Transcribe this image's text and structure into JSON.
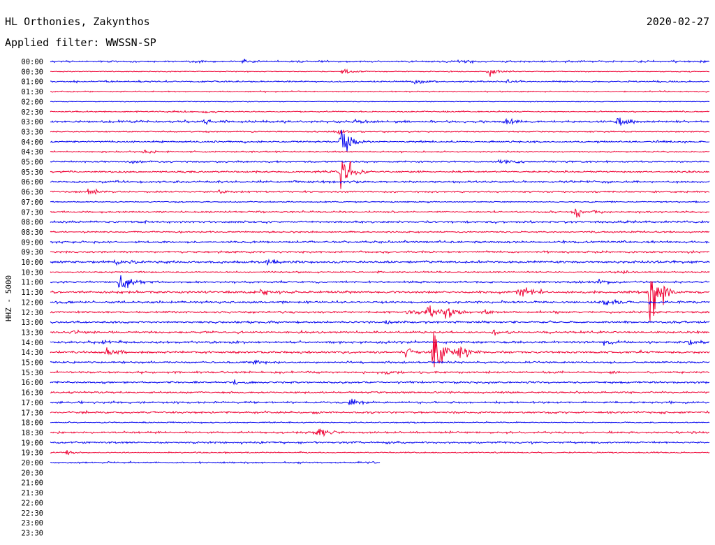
{
  "header": {
    "station": "HL Orthonies, Zakynthos",
    "filter": "Applied filter: WWSSN-SP",
    "date": "2020-02-27"
  },
  "chart_data": {
    "type": "line",
    "ylabel": "HHZ - 5000",
    "row_labels": [
      "00:00",
      "00:30",
      "01:00",
      "01:30",
      "02:00",
      "02:30",
      "03:00",
      "03:30",
      "04:00",
      "04:30",
      "05:00",
      "05:30",
      "06:00",
      "06:30",
      "07:00",
      "07:30",
      "08:00",
      "08:30",
      "09:00",
      "09:30",
      "10:00",
      "10:30",
      "11:00",
      "11:30",
      "12:00",
      "12:30",
      "13:00",
      "13:30",
      "14:00",
      "14:30",
      "15:00",
      "15:30",
      "16:00",
      "16:30",
      "17:00",
      "17:30",
      "18:00",
      "18:30",
      "19:00",
      "19:30",
      "20:00",
      "20:30",
      "21:00",
      "21:30",
      "22:00",
      "22:30",
      "23:00",
      "23:30"
    ],
    "row_minutes": 30,
    "series_colors": [
      "#0000ee",
      "#ee0033"
    ],
    "rows_with_data": 41,
    "last_row_coverage": 0.5,
    "noise_levels": [
      1.2,
      0.6,
      1.0,
      0.8,
      0.5,
      0.8,
      1.5,
      0.8,
      1.2,
      1.0,
      1.0,
      1.2,
      1.4,
      1.0,
      0.8,
      1.2,
      1.3,
      1.0,
      1.4,
      1.2,
      1.5,
      1.0,
      1.2,
      1.5,
      1.5,
      1.3,
      1.3,
      1.3,
      1.5,
      1.5,
      1.2,
      1.3,
      1.3,
      1.2,
      1.3,
      1.3,
      0.8,
      1.3,
      1.3,
      0.8,
      1.0
    ],
    "events": [
      {
        "row": 0,
        "t": 0.29,
        "amp": 3
      },
      {
        "row": 0,
        "t": 0.62,
        "amp": 3
      },
      {
        "row": 1,
        "t": 0.443,
        "amp": 4
      },
      {
        "row": 1,
        "t": 0.664,
        "amp": 8
      },
      {
        "row": 2,
        "t": 0.55,
        "amp": 3
      },
      {
        "row": 2,
        "t": 0.69,
        "amp": 3
      },
      {
        "row": 5,
        "t": 0.18,
        "amp": 3
      },
      {
        "row": 5,
        "t": 0.23,
        "amp": 3
      },
      {
        "row": 6,
        "t": 0.234,
        "amp": 4
      },
      {
        "row": 6,
        "t": 0.46,
        "amp": 3
      },
      {
        "row": 6,
        "t": 0.69,
        "amp": 5
      },
      {
        "row": 6,
        "t": 0.86,
        "amp": 6
      },
      {
        "row": 7,
        "t": 0.437,
        "amp": 3
      },
      {
        "row": 8,
        "t": 0.441,
        "amp": 20
      },
      {
        "row": 9,
        "t": 0.14,
        "amp": 3
      },
      {
        "row": 10,
        "t": 0.12,
        "amp": 3
      },
      {
        "row": 10,
        "t": 0.68,
        "amp": 3
      },
      {
        "row": 11,
        "t": 0.441,
        "amp": 30
      },
      {
        "row": 13,
        "t": 0.057,
        "amp": 5
      },
      {
        "row": 13,
        "t": 0.255,
        "amp": 3
      },
      {
        "row": 15,
        "t": 0.797,
        "amp": 9
      },
      {
        "row": 20,
        "t": 0.1,
        "amp": 3
      },
      {
        "row": 20,
        "t": 0.33,
        "amp": 3
      },
      {
        "row": 21,
        "t": 0.87,
        "amp": 3
      },
      {
        "row": 22,
        "t": 0.105,
        "amp": 16
      },
      {
        "row": 22,
        "t": 0.83,
        "amp": 3
      },
      {
        "row": 23,
        "t": 0.32,
        "amp": 3
      },
      {
        "row": 23,
        "t": 0.71,
        "amp": 12
      },
      {
        "row": 23,
        "t": 0.91,
        "amp": 55
      },
      {
        "row": 24,
        "t": 0.84,
        "amp": 6
      },
      {
        "row": 25,
        "t": 0.54,
        "amp": 4
      },
      {
        "row": 25,
        "t": 0.57,
        "amp": 16
      },
      {
        "row": 25,
        "t": 0.6,
        "amp": 10
      },
      {
        "row": 25,
        "t": 0.655,
        "amp": 4
      },
      {
        "row": 26,
        "t": 0.51,
        "amp": 3
      },
      {
        "row": 27,
        "t": 0.03,
        "amp": 3
      },
      {
        "row": 27,
        "t": 0.67,
        "amp": 4
      },
      {
        "row": 28,
        "t": 0.08,
        "amp": 3
      },
      {
        "row": 28,
        "t": 0.84,
        "amp": 3
      },
      {
        "row": 28,
        "t": 0.966,
        "amp": 4
      },
      {
        "row": 29,
        "t": 0.085,
        "amp": 4
      },
      {
        "row": 29,
        "t": 0.54,
        "amp": 8
      },
      {
        "row": 29,
        "t": 0.58,
        "amp": 40
      },
      {
        "row": 29,
        "t": 0.62,
        "amp": 10
      },
      {
        "row": 30,
        "t": 0.31,
        "amp": 3
      },
      {
        "row": 31,
        "t": 0.51,
        "amp": 4
      },
      {
        "row": 32,
        "t": 0.28,
        "amp": 3
      },
      {
        "row": 34,
        "t": 0.455,
        "amp": 6
      },
      {
        "row": 37,
        "t": 0.4,
        "amp": 10
      },
      {
        "row": 39,
        "t": 0.025,
        "amp": 4
      }
    ]
  }
}
